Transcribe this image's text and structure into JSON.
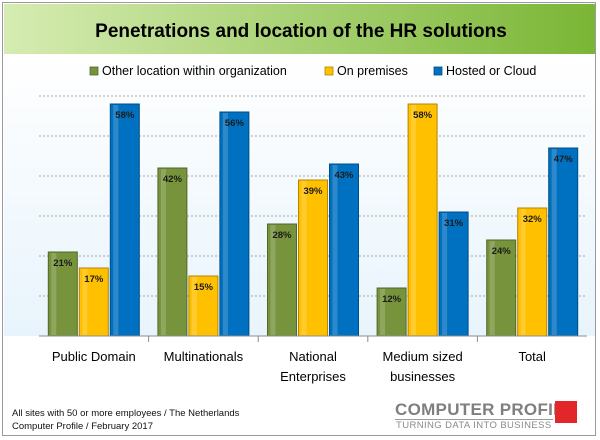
{
  "chart_data": {
    "type": "bar",
    "title": "Penetrations and location of the HR solutions",
    "categories": [
      [
        "Public Domain"
      ],
      [
        "Multinationals"
      ],
      [
        "National",
        "Enterprises"
      ],
      [
        "Medium sized",
        "businesses"
      ],
      [
        "Total"
      ]
    ],
    "series": [
      {
        "name": "Other location within organization",
        "color": "#77933c",
        "values": [
          21,
          42,
          28,
          12,
          24
        ]
      },
      {
        "name": "On premises",
        "color": "#ffc000",
        "values": [
          17,
          15,
          39,
          58,
          32
        ]
      },
      {
        "name": "Hosted or Cloud",
        "color": "#0070c0",
        "values": [
          58,
          56,
          43,
          31,
          47
        ]
      }
    ],
    "value_suffix": "%",
    "ylim": [
      0,
      60
    ],
    "grid": true,
    "legend_position": "top"
  },
  "colors": {
    "title_banner_start": "#d6ecb2",
    "title_banner_end": "#7ab635",
    "plot_background_start": "#ffffff",
    "plot_background_end": "#e8f4fc"
  },
  "footnotes": {
    "line1": "All sites with 50 or more employees / The Netherlands",
    "line2": "Computer Profile / February 2017"
  },
  "logo": {
    "name": "COMPUTER PROFILE",
    "tagline": "TURNING DATA INTO BUSINESS",
    "accent_color": "#e3262a"
  }
}
